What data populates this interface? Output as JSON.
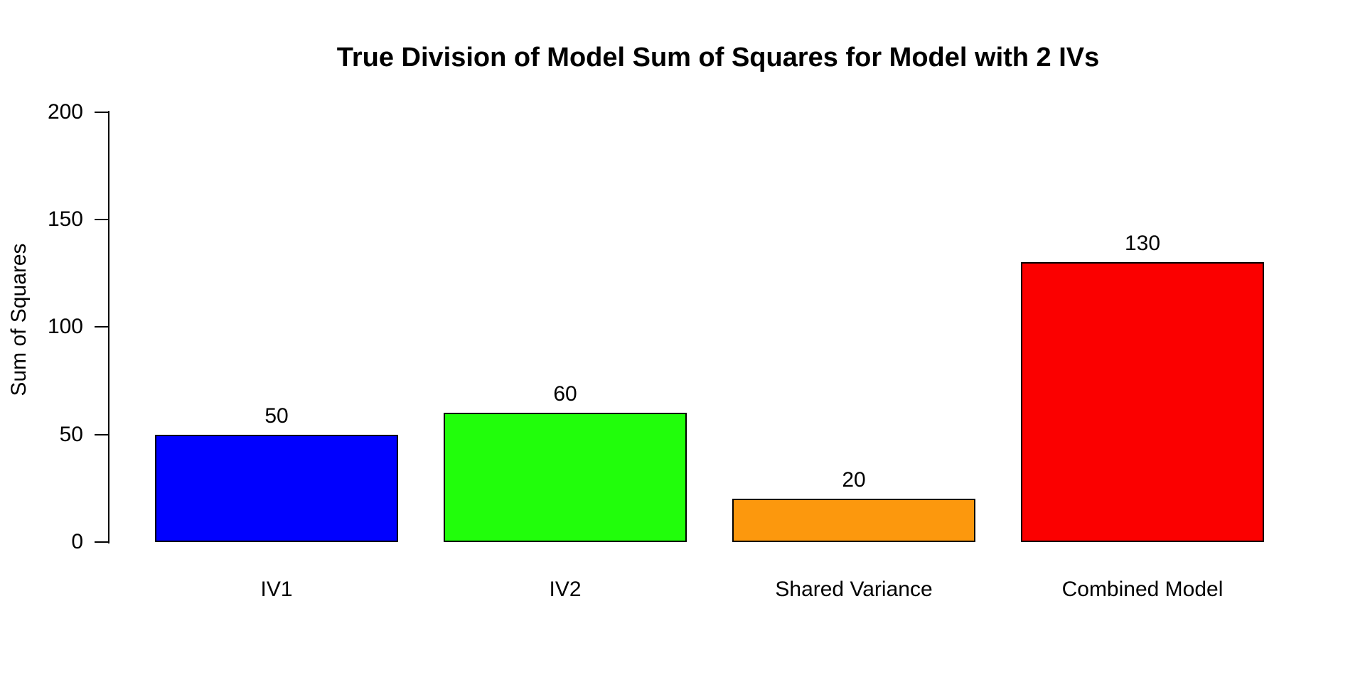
{
  "chart_data": {
    "type": "bar",
    "title": "True Division of Model Sum of Squares for Model with 2 IVs",
    "xlabel": "",
    "ylabel": "Sum of Squares",
    "categories": [
      "IV1",
      "IV2",
      "Shared Variance",
      "Combined Model"
    ],
    "values": [
      50,
      60,
      20,
      130
    ],
    "value_labels": [
      "50",
      "60",
      "20",
      "130"
    ],
    "bar_colors": [
      "#0000FF",
      "#21FE0B",
      "#FC980D",
      "#FB0000"
    ],
    "bar_border_color": "#000000",
    "ylim": [
      0,
      200
    ],
    "y_ticks": [
      0,
      50,
      100,
      150,
      200
    ],
    "grid": false,
    "legend": "none",
    "background": "#FFFFFF",
    "axis_color": "#000000"
  }
}
